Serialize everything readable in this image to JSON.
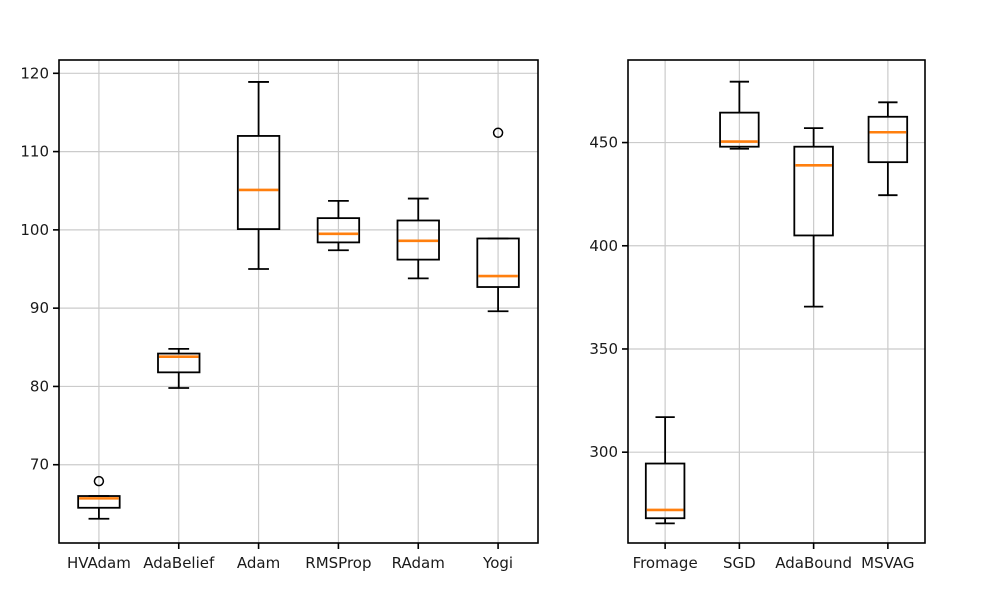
{
  "figure": {
    "background": "#ffffff",
    "colors": {
      "median": "#ff7f0e",
      "box_edge": "#000000",
      "whisker": "#000000",
      "outlier_edge": "#000000",
      "grid": "#cbcbcb",
      "frame": "#000000",
      "tick_text": "#1a1a1a"
    }
  },
  "chart_data": [
    {
      "type": "boxplot",
      "title": "",
      "xlabel": "",
      "ylabel": "",
      "grid": true,
      "categories": [
        "HVAdam",
        "AdaBelief",
        "Adam",
        "RMSProp",
        "RAdam",
        "Yogi"
      ],
      "ylim": [
        60,
        121.7
      ],
      "yticks": [
        70,
        80,
        90,
        100,
        110,
        120
      ],
      "boxes": [
        {
          "label": "HVAdam",
          "whislo": 63.1,
          "q1": 64.5,
          "med": 65.7,
          "q3": 66.0,
          "whishi": 66.0,
          "fliers": [
            67.9
          ]
        },
        {
          "label": "AdaBelief",
          "whislo": 79.8,
          "q1": 81.8,
          "med": 83.8,
          "q3": 84.2,
          "whishi": 84.8,
          "fliers": []
        },
        {
          "label": "Adam",
          "whislo": 95.0,
          "q1": 100.1,
          "med": 105.1,
          "q3": 112.0,
          "whishi": 118.9,
          "fliers": []
        },
        {
          "label": "RMSProp",
          "whislo": 97.4,
          "q1": 98.4,
          "med": 99.5,
          "q3": 101.5,
          "whishi": 103.7,
          "fliers": []
        },
        {
          "label": "RAdam",
          "whislo": 93.8,
          "q1": 96.2,
          "med": 98.6,
          "q3": 101.2,
          "whishi": 104.0,
          "fliers": []
        },
        {
          "label": "Yogi",
          "whislo": 89.6,
          "q1": 92.7,
          "med": 94.1,
          "q3": 98.9,
          "whishi": 98.9,
          "fliers": [
            112.4
          ]
        }
      ]
    },
    {
      "type": "boxplot",
      "title": "",
      "xlabel": "",
      "ylabel": "",
      "grid": true,
      "categories": [
        "Fromage",
        "SGD",
        "AdaBound",
        "MSVAG"
      ],
      "ylim": [
        256,
        490
      ],
      "yticks": [
        300,
        350,
        400,
        450
      ],
      "boxes": [
        {
          "label": "Fromage",
          "whislo": 265.5,
          "q1": 268.0,
          "med": 272.0,
          "q3": 294.5,
          "whishi": 317.0,
          "fliers": []
        },
        {
          "label": "SGD",
          "whislo": 447.0,
          "q1": 448.0,
          "med": 450.5,
          "q3": 464.5,
          "whishi": 479.5,
          "fliers": []
        },
        {
          "label": "AdaBound",
          "whislo": 370.5,
          "q1": 405.0,
          "med": 439.0,
          "q3": 448.0,
          "whishi": 457.0,
          "fliers": []
        },
        {
          "label": "MSVAG",
          "whislo": 424.5,
          "q1": 440.5,
          "med": 455.0,
          "q3": 462.5,
          "whishi": 469.5,
          "fliers": []
        }
      ]
    }
  ]
}
